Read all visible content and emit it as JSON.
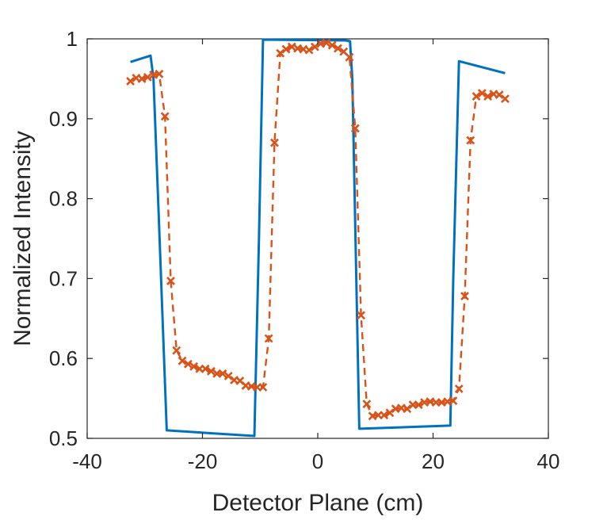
{
  "chart_data": {
    "type": "line",
    "title": "",
    "xlabel": "Detector Plane (cm)",
    "ylabel": "Normalized Intensity",
    "xlim": [
      -40,
      40
    ],
    "ylim": [
      0.5,
      1
    ],
    "xticks": [
      -40,
      -20,
      0,
      20,
      40
    ],
    "yticks": [
      0.5,
      0.6,
      0.7,
      0.8,
      0.9,
      1
    ],
    "ytick_labels": [
      "0.5",
      "0.6",
      "0.7",
      "0.8",
      "0.9",
      "1"
    ],
    "grid": false,
    "legend": false,
    "series": [
      {
        "style": "solid-line",
        "color": "#0072BD",
        "x": [
          -32.5,
          -29,
          -28.5,
          -27.7,
          -26.2,
          -11,
          -10.2,
          -9.5,
          4.8,
          5.6,
          6,
          7.2,
          23,
          23.5,
          24.5,
          32.5
        ],
        "y": [
          0.971,
          0.979,
          0.95,
          0.8,
          0.51,
          0.503,
          0.75,
          0.999,
          0.998,
          0.997,
          0.95,
          0.512,
          0.516,
          0.7,
          0.972,
          0.957
        ]
      },
      {
        "style": "dashed-line-x-markers",
        "color": "#D95319",
        "x": [
          -32.5,
          -31.5,
          -30.5,
          -29.5,
          -28.5,
          -27.5,
          -26.5,
          -25.5,
          -24.5,
          -23.5,
          -22.5,
          -21.5,
          -20.5,
          -19.5,
          -18.5,
          -17.5,
          -16.5,
          -15.5,
          -14.5,
          -13.5,
          -12.5,
          -11.5,
          -10.5,
          -9.5,
          -8.5,
          -7.5,
          -6.5,
          -5.5,
          -4.5,
          -3.5,
          -2.5,
          -1.5,
          -0.5,
          0.5,
          1.5,
          2.5,
          3.5,
          4.5,
          5.5,
          6.5,
          7.5,
          8.5,
          9.5,
          10.5,
          11.5,
          12.5,
          13.5,
          14.5,
          15.5,
          16.5,
          17.5,
          18.5,
          19.5,
          20.5,
          21.5,
          22.5,
          23.5,
          24.5,
          25.5,
          26.5,
          27.5,
          28.5,
          29.5,
          30.5,
          31.5,
          32.5
        ],
        "y": [
          0.947,
          0.951,
          0.95,
          0.952,
          0.955,
          0.956,
          0.903,
          0.697,
          0.61,
          0.597,
          0.593,
          0.59,
          0.587,
          0.587,
          0.584,
          0.581,
          0.581,
          0.578,
          0.573,
          0.572,
          0.566,
          0.565,
          0.564,
          0.564,
          0.625,
          0.87,
          0.982,
          0.987,
          0.99,
          0.988,
          0.987,
          0.986,
          0.99,
          0.994,
          0.995,
          0.992,
          0.988,
          0.984,
          0.977,
          0.888,
          0.654,
          0.543,
          0.528,
          0.529,
          0.529,
          0.532,
          0.537,
          0.538,
          0.537,
          0.542,
          0.542,
          0.545,
          0.546,
          0.545,
          0.545,
          0.546,
          0.547,
          0.562,
          0.678,
          0.873,
          0.928,
          0.932,
          0.928,
          0.931,
          0.93,
          0.925
        ]
      }
    ]
  }
}
